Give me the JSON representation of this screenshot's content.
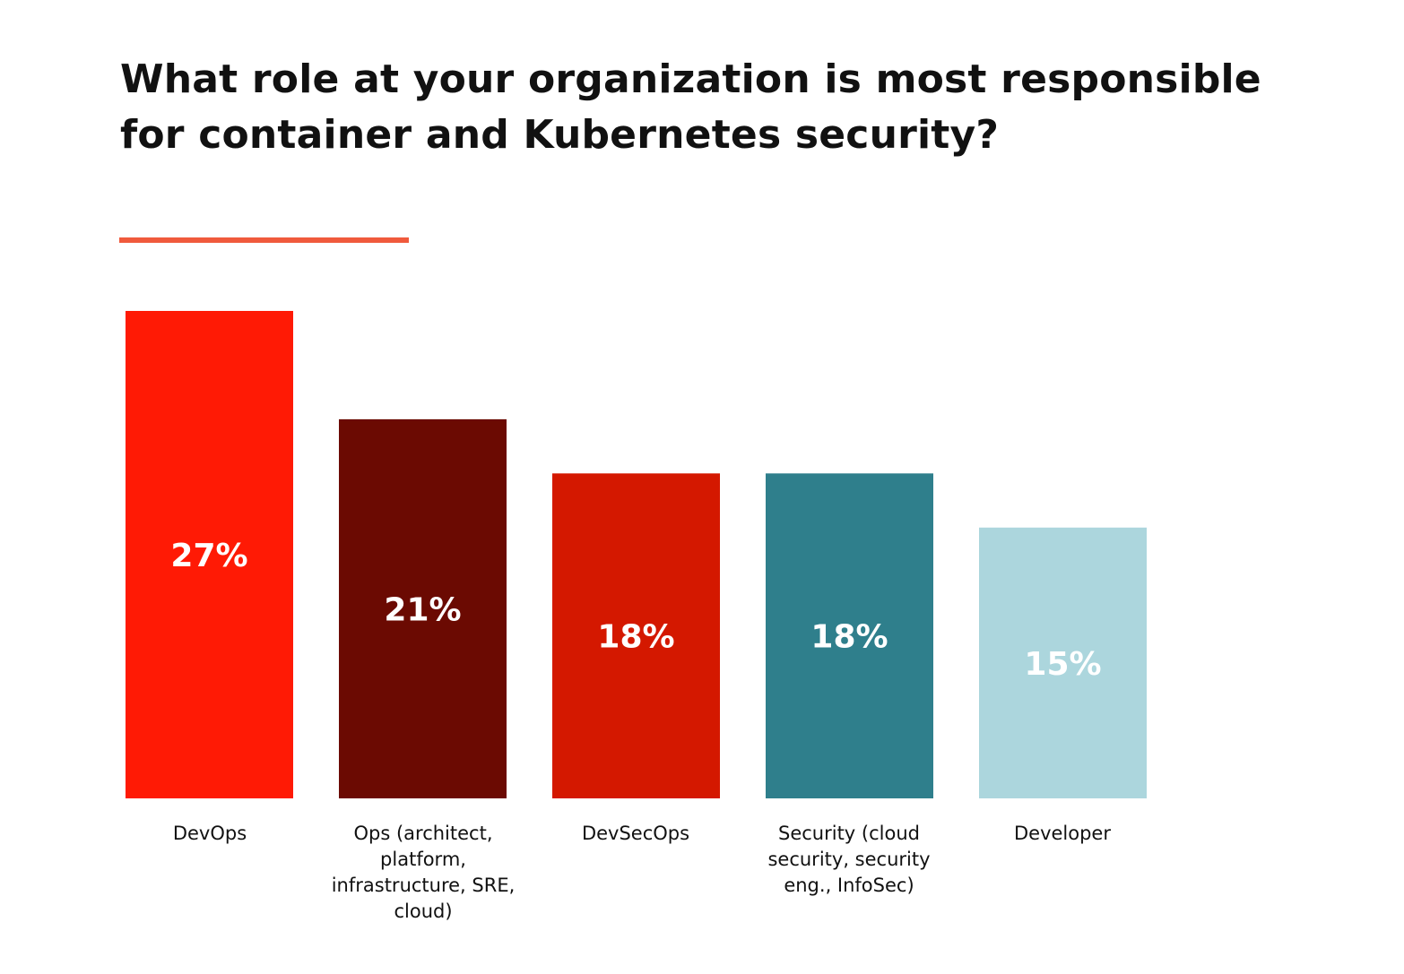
{
  "title": "What role at your organization is most responsible for container and Kubernetes security?",
  "accent_color": "#f05a3c",
  "chart_data": {
    "type": "bar",
    "categories": [
      "DevOps",
      "Ops (architect, platform, infrastructure, SRE, cloud)",
      "DevSecOps",
      "Security (cloud security, security eng., InfoSec)",
      "Developer"
    ],
    "values": [
      27,
      21,
      18,
      18,
      15
    ],
    "value_labels": [
      "27%",
      "21%",
      "18%",
      "18%",
      "15%"
    ],
    "colors": [
      "#ff1a05",
      "#6b0a02",
      "#d41800",
      "#2f7f8c",
      "#acd6dd"
    ],
    "value_label_color": "#ffffff",
    "ylim": [
      0,
      27
    ],
    "grid": false,
    "legend": "none"
  }
}
